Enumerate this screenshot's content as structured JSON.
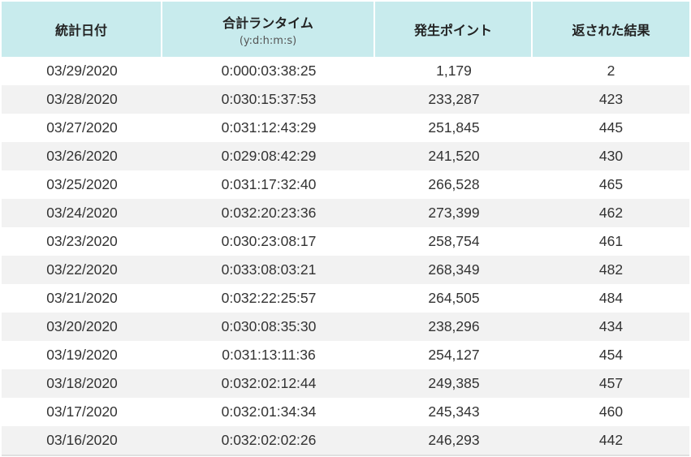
{
  "table": {
    "headers": {
      "date": "統計日付",
      "runtime": "合計ランタイム",
      "runtime_unit": "(y:d:h:m:s)",
      "points": "発生ポイント",
      "results": "返された結果"
    },
    "rows": [
      {
        "date": "03/29/2020",
        "runtime": "0:000:03:38:25",
        "points": "1,179",
        "results": "2"
      },
      {
        "date": "03/28/2020",
        "runtime": "0:030:15:37:53",
        "points": "233,287",
        "results": "423"
      },
      {
        "date": "03/27/2020",
        "runtime": "0:031:12:43:29",
        "points": "251,845",
        "results": "445"
      },
      {
        "date": "03/26/2020",
        "runtime": "0:029:08:42:29",
        "points": "241,520",
        "results": "430"
      },
      {
        "date": "03/25/2020",
        "runtime": "0:031:17:32:40",
        "points": "266,528",
        "results": "465"
      },
      {
        "date": "03/24/2020",
        "runtime": "0:032:20:23:36",
        "points": "273,399",
        "results": "462"
      },
      {
        "date": "03/23/2020",
        "runtime": "0:030:23:08:17",
        "points": "258,754",
        "results": "461"
      },
      {
        "date": "03/22/2020",
        "runtime": "0:033:08:03:21",
        "points": "268,349",
        "results": "482"
      },
      {
        "date": "03/21/2020",
        "runtime": "0:032:22:25:57",
        "points": "264,505",
        "results": "484"
      },
      {
        "date": "03/20/2020",
        "runtime": "0:030:08:35:30",
        "points": "238,296",
        "results": "434"
      },
      {
        "date": "03/19/2020",
        "runtime": "0:031:13:11:36",
        "points": "254,127",
        "results": "454"
      },
      {
        "date": "03/18/2020",
        "runtime": "0:032:02:12:44",
        "points": "249,385",
        "results": "457"
      },
      {
        "date": "03/17/2020",
        "runtime": "0:032:01:34:34",
        "points": "245,343",
        "results": "460"
      },
      {
        "date": "03/16/2020",
        "runtime": "0:032:02:02:26",
        "points": "246,293",
        "results": "442"
      }
    ]
  }
}
